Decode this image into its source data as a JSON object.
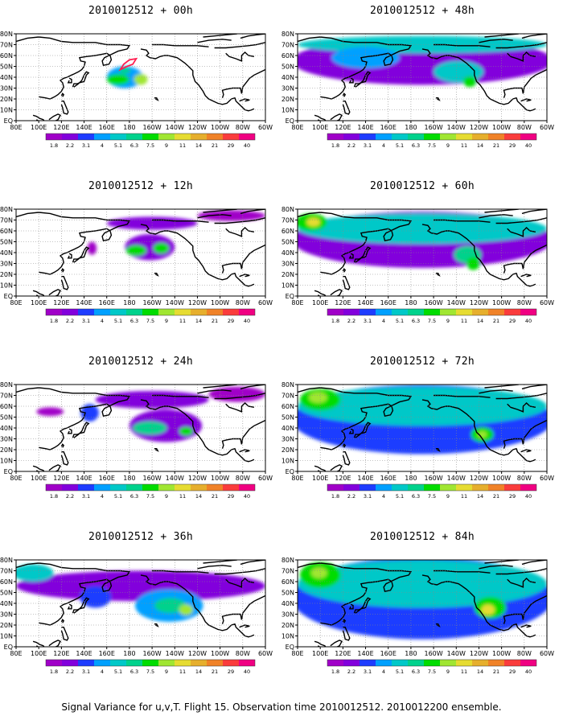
{
  "map_extent": {
    "lon": [
      80,
      300
    ],
    "lat": [
      0,
      80
    ]
  },
  "lon_ticks": [
    "80E",
    "100E",
    "120E",
    "140E",
    "160E",
    "180",
    "160W",
    "140W",
    "120W",
    "100W",
    "80W",
    "60W"
  ],
  "lat_ticks": [
    "EQ",
    "10N",
    "20N",
    "30N",
    "40N",
    "50N",
    "60N",
    "70N",
    "80N"
  ],
  "color_scale": {
    "labels": [
      "1.8",
      "2.2",
      "3.1",
      "4",
      "5.1",
      "6.3",
      "7.5",
      "9",
      "11",
      "14",
      "21",
      "29",
      "40"
    ],
    "colors": [
      "#a000c8",
      "#8200dc",
      "#1e3cff",
      "#00a0ff",
      "#00c8c8",
      "#00d28c",
      "#00dc00",
      "#a0e632",
      "#e6dc32",
      "#e6af2d",
      "#f08228",
      "#fa3c3c",
      "#f00082"
    ]
  },
  "colors": {
    "land_outline": "#000000",
    "grid": "#888888"
  },
  "panels": [
    {
      "title": "2010012512 + 00h",
      "col": 0,
      "row": 0,
      "hours": 0,
      "features": [
        {
          "lon": 176,
          "lat": 40,
          "rx": 16,
          "ry": 10,
          "level": 3
        },
        {
          "lon": 170,
          "lat": 38,
          "rx": 10,
          "ry": 5,
          "level": 6
        },
        {
          "lon": 190,
          "lat": 38,
          "rx": 6,
          "ry": 5,
          "level": 7
        },
        {
          "lon": 176,
          "lat": 46,
          "rx": 5,
          "ry": 3,
          "level": 5
        }
      ],
      "flight_track": [
        [
          172,
          47
        ],
        [
          175,
          52
        ],
        [
          180,
          56
        ],
        [
          186,
          57
        ],
        [
          183,
          52
        ],
        [
          178,
          50
        ],
        [
          174,
          48
        ]
      ]
    },
    {
      "title": "2010012512 + 12h",
      "col": 0,
      "row": 1,
      "hours": 12,
      "features": [
        {
          "lon": 200,
          "lat": 67,
          "rx": 40,
          "ry": 6,
          "level": 1
        },
        {
          "lon": 270,
          "lat": 74,
          "rx": 30,
          "ry": 5,
          "level": 0
        },
        {
          "lon": 198,
          "lat": 45,
          "rx": 22,
          "ry": 12,
          "level": 1
        },
        {
          "lon": 186,
          "lat": 42,
          "rx": 9,
          "ry": 5,
          "level": 6
        },
        {
          "lon": 208,
          "lat": 44,
          "rx": 7,
          "ry": 5,
          "level": 6
        },
        {
          "lon": 147,
          "lat": 44,
          "rx": 4,
          "ry": 6,
          "level": 0
        }
      ]
    },
    {
      "title": "2010012512 + 24h",
      "col": 0,
      "row": 2,
      "hours": 24,
      "features": [
        {
          "lon": 200,
          "lat": 66,
          "rx": 50,
          "ry": 8,
          "level": 1
        },
        {
          "lon": 275,
          "lat": 71,
          "rx": 25,
          "ry": 7,
          "level": 0
        },
        {
          "lon": 212,
          "lat": 42,
          "rx": 32,
          "ry": 15,
          "level": 1
        },
        {
          "lon": 198,
          "lat": 40,
          "rx": 15,
          "ry": 6,
          "level": 5
        },
        {
          "lon": 230,
          "lat": 37,
          "rx": 6,
          "ry": 4,
          "level": 6
        },
        {
          "lon": 145,
          "lat": 54,
          "rx": 8,
          "ry": 8,
          "level": 2
        },
        {
          "lon": 110,
          "lat": 55,
          "rx": 12,
          "ry": 4,
          "level": 0
        }
      ]
    },
    {
      "title": "2010012512 + 36h",
      "col": 0,
      "row": 3,
      "hours": 36,
      "features": [
        {
          "lon": 190,
          "lat": 56,
          "rx": 110,
          "ry": 14,
          "level": 1
        },
        {
          "lon": 150,
          "lat": 46,
          "rx": 14,
          "ry": 10,
          "level": 2
        },
        {
          "lon": 215,
          "lat": 38,
          "rx": 30,
          "ry": 15,
          "level": 3
        },
        {
          "lon": 216,
          "lat": 38,
          "rx": 14,
          "ry": 7,
          "level": 5
        },
        {
          "lon": 230,
          "lat": 34,
          "rx": 6,
          "ry": 5,
          "level": 7
        },
        {
          "lon": 95,
          "lat": 68,
          "rx": 18,
          "ry": 8,
          "level": 4
        }
      ]
    },
    {
      "title": "2010012512 + 48h",
      "col": 1,
      "row": 0,
      "hours": 48,
      "features": [
        {
          "lon": 190,
          "lat": 55,
          "rx": 115,
          "ry": 22,
          "level": 1
        },
        {
          "lon": 190,
          "lat": 70,
          "rx": 110,
          "ry": 8,
          "level": 4
        },
        {
          "lon": 140,
          "lat": 58,
          "rx": 30,
          "ry": 10,
          "level": 3
        },
        {
          "lon": 222,
          "lat": 45,
          "rx": 22,
          "ry": 10,
          "level": 4
        },
        {
          "lon": 232,
          "lat": 36,
          "rx": 6,
          "ry": 5,
          "level": 6
        }
      ]
    },
    {
      "title": "2010012512 + 60h",
      "col": 1,
      "row": 1,
      "hours": 60,
      "features": [
        {
          "lon": 190,
          "lat": 52,
          "rx": 115,
          "ry": 26,
          "level": 1
        },
        {
          "lon": 190,
          "lat": 62,
          "rx": 110,
          "ry": 14,
          "level": 4
        },
        {
          "lon": 92,
          "lat": 68,
          "rx": 14,
          "ry": 8,
          "level": 6
        },
        {
          "lon": 94,
          "lat": 68,
          "rx": 6,
          "ry": 4,
          "level": 8
        },
        {
          "lon": 230,
          "lat": 38,
          "rx": 12,
          "ry": 8,
          "level": 5
        },
        {
          "lon": 235,
          "lat": 30,
          "rx": 6,
          "ry": 6,
          "level": 6
        }
      ]
    },
    {
      "title": "2010012512 + 72h",
      "col": 1,
      "row": 2,
      "hours": 72,
      "features": [
        {
          "lon": 190,
          "lat": 48,
          "rx": 115,
          "ry": 32,
          "level": 2
        },
        {
          "lon": 190,
          "lat": 60,
          "rx": 110,
          "ry": 18,
          "level": 4
        },
        {
          "lon": 100,
          "lat": 66,
          "rx": 18,
          "ry": 10,
          "level": 6
        },
        {
          "lon": 98,
          "lat": 68,
          "rx": 8,
          "ry": 5,
          "level": 7
        },
        {
          "lon": 243,
          "lat": 34,
          "rx": 10,
          "ry": 7,
          "level": 6
        },
        {
          "lon": 243,
          "lat": 34,
          "rx": 4,
          "ry": 3,
          "level": 7
        }
      ]
    },
    {
      "title": "2010012512 + 84h",
      "col": 1,
      "row": 3,
      "hours": 84,
      "features": [
        {
          "lon": 190,
          "lat": 45,
          "rx": 115,
          "ry": 38,
          "level": 2
        },
        {
          "lon": 190,
          "lat": 58,
          "rx": 110,
          "ry": 22,
          "level": 4
        },
        {
          "lon": 100,
          "lat": 66,
          "rx": 18,
          "ry": 12,
          "level": 6
        },
        {
          "lon": 99,
          "lat": 68,
          "rx": 7,
          "ry": 5,
          "level": 7
        },
        {
          "lon": 250,
          "lat": 36,
          "rx": 14,
          "ry": 10,
          "level": 6
        },
        {
          "lon": 248,
          "lat": 34,
          "rx": 6,
          "ry": 5,
          "level": 8
        }
      ]
    }
  ],
  "footer": "Signal Variance for u,v,T. Flight 15. Observation time 2010012512. 2010012200 ensemble."
}
